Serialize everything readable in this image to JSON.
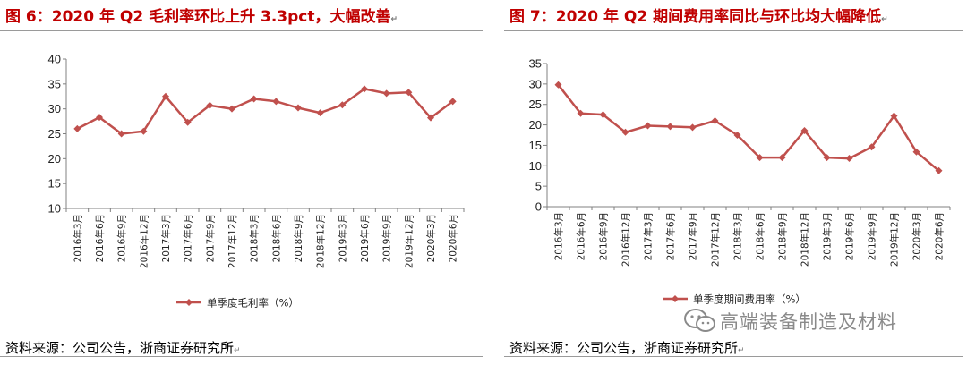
{
  "colors": {
    "series": "#c0504d",
    "title": "#c00000",
    "axis": "#808080"
  },
  "return_mark": "↵",
  "left": {
    "title": "图 6：2020 年 Q2 毛利率环比上升 3.3pct，大幅改善",
    "source": "资料来源：公司公告，浙商证券研究所",
    "chart_data": {
      "type": "line",
      "title": "图 6：2020 年 Q2 毛利率环比上升 3.3pct，大幅改善",
      "categories": [
        "2016年3月",
        "2016年6月",
        "2016年9月",
        "2016年12月",
        "2017年3月",
        "2017年6月",
        "2017年9月",
        "2017年12月",
        "2018年3月",
        "2018年6月",
        "2018年9月",
        "2018年12月",
        "2019年3月",
        "2019年6月",
        "2019年9月",
        "2019年12月",
        "2020年3月",
        "2020年6月"
      ],
      "series": [
        {
          "name": "单季度毛利率（%）",
          "values": [
            26.0,
            28.3,
            25.0,
            25.5,
            32.5,
            27.3,
            30.7,
            30.0,
            32.0,
            31.5,
            30.2,
            29.2,
            30.8,
            34.0,
            33.1,
            33.3,
            28.2,
            31.5
          ]
        }
      ],
      "ylim": [
        10,
        40
      ],
      "yticks": [
        10,
        15,
        20,
        25,
        30,
        35,
        40
      ],
      "legend": "单季度毛利率（%）",
      "legend_position": "bottom"
    }
  },
  "right": {
    "title": "图 7：2020 年 Q2 期间费用率同比与环比均大幅降低",
    "source": "资料来源：公司公告，浙商证券研究所",
    "watermark": "高端装备制造及材料",
    "chart_data": {
      "type": "line",
      "title": "图 7：2020 年 Q2 期间费用率同比与环比均大幅降低",
      "categories": [
        "2016年3月",
        "2016年6月",
        "2016年9月",
        "2016年12月",
        "2017年3月",
        "2017年6月",
        "2017年9月",
        "2017年12月",
        "2018年3月",
        "2018年6月",
        "2018年9月",
        "2018年12月",
        "2019年3月",
        "2019年6月",
        "2019年9月",
        "2019年12月",
        "2020年3月",
        "2020年6月"
      ],
      "series": [
        {
          "name": "单季度期间费用率（%）",
          "values": [
            29.8,
            22.8,
            22.5,
            18.2,
            19.8,
            19.6,
            19.4,
            21.0,
            17.5,
            12.0,
            12.0,
            18.6,
            12.0,
            11.8,
            14.6,
            22.2,
            13.4,
            8.8
          ]
        }
      ],
      "ylim": [
        0,
        35
      ],
      "yticks": [
        0,
        5,
        10,
        15,
        20,
        25,
        30,
        35
      ],
      "legend": "单季度期间费用率（%）",
      "legend_position": "bottom"
    }
  }
}
